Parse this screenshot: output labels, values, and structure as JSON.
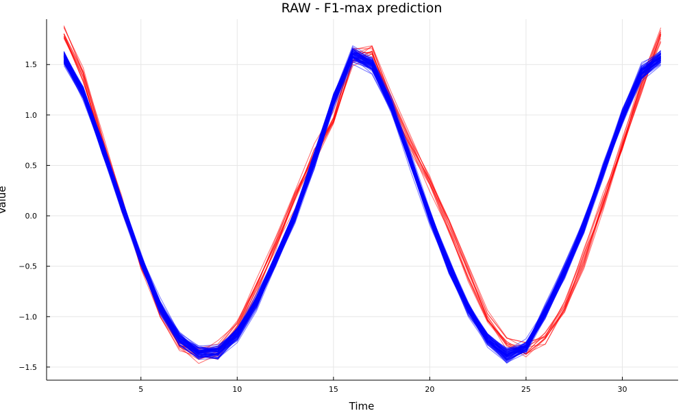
{
  "chart_data": {
    "type": "line",
    "title": "RAW - F1-max prediction",
    "xlabel": "Time",
    "ylabel": "Value",
    "xlim": [
      0.1,
      32.9
    ],
    "ylim": [
      -1.63,
      1.95
    ],
    "xticks": [
      5,
      10,
      15,
      20,
      25,
      30
    ],
    "yticks": [
      -1.5,
      -1.0,
      -0.5,
      0.0,
      0.5,
      1.0,
      1.5
    ],
    "ytick_labels": [
      "−1.5",
      "−1.0",
      "−0.5",
      "0.0",
      "0.5",
      "1.0",
      "1.5"
    ],
    "grid": true,
    "legend": "none",
    "x": [
      1,
      2,
      3,
      4,
      5,
      6,
      7,
      8,
      9,
      10,
      11,
      12,
      13,
      14,
      15,
      16,
      17,
      18,
      19,
      20,
      21,
      22,
      23,
      24,
      25,
      26,
      27,
      28,
      29,
      30,
      31,
      32
    ],
    "series": [
      {
        "color": "#ff0000",
        "opacity": 0.55,
        "line_count": 12,
        "spread": 0.08,
        "values": [
          1.8,
          1.4,
          0.75,
          0.15,
          -0.45,
          -0.95,
          -1.28,
          -1.36,
          -1.32,
          -1.08,
          -0.7,
          -0.27,
          0.2,
          0.62,
          0.98,
          1.58,
          1.62,
          1.15,
          0.72,
          0.33,
          -0.1,
          -0.55,
          -0.98,
          -1.25,
          -1.32,
          -1.2,
          -0.88,
          -0.43,
          0.15,
          0.7,
          1.3,
          1.8
        ]
      },
      {
        "color": "#0000ff",
        "opacity": 0.5,
        "line_count": 70,
        "spread": 0.06,
        "values": [
          1.57,
          1.22,
          0.68,
          0.12,
          -0.42,
          -0.9,
          -1.22,
          -1.35,
          -1.35,
          -1.17,
          -0.85,
          -0.43,
          0.0,
          0.55,
          1.15,
          1.6,
          1.5,
          1.1,
          0.55,
          0.0,
          -0.5,
          -0.92,
          -1.22,
          -1.38,
          -1.3,
          -0.95,
          -0.55,
          -0.1,
          0.45,
          0.98,
          1.42,
          1.57
        ]
      }
    ]
  }
}
